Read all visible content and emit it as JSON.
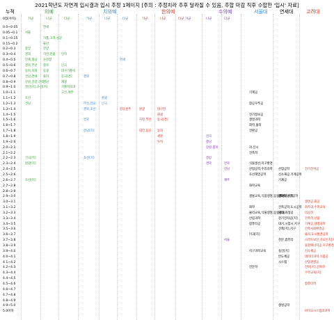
{
  "title": "2021학년도 자연계 입시결과 입시 추정 1페이지 [주의 : 추정치라 추후 달라질 수 있음, 추합 마감 직후 수합한 '입시' 자료]",
  "colors": {
    "green": "#2e9a2e",
    "blue": "#2f7fd0",
    "red": "#d42a1a",
    "purple": "#7a2ec8",
    "black": "#000000",
    "gray": "#8a8a8a"
  },
  "header": {
    "rank": "누적",
    "cols": [
      {
        "label": "의예",
        "color": "green"
      },
      {
        "label": "치의예",
        "color": "blue"
      },
      {
        "label": "한의예",
        "color": "red"
      },
      {
        "label": "수의예",
        "color": "purple"
      },
      {
        "label": "서울대",
        "color": "blue"
      },
      {
        "label": "연세대",
        "color": "black"
      },
      {
        "label": "고려대",
        "color": "red"
      }
    ],
    "sub_rank": "0점(수치)",
    "subs": [
      "가군",
      "나군",
      "다군",
      "가군",
      "나군",
      "다군",
      "가군",
      "나군",
      "다군",
      "가군",
      "나군",
      "다군"
    ]
  },
  "rows": [
    "0.0~0.05",
    "0.05~0.1",
    "0.1~0.15",
    "0.15~0.2",
    "0.2~0.3",
    "0.3~0.4",
    "0.4~0.5",
    "0.5~0.6",
    "0.6~0.7",
    "0.7~0.8",
    "0.8~0.9",
    "0.9~1.0",
    "1.0~1.1",
    "1.1~1.2",
    "1.2~1.3",
    "1.3~1.4",
    "1.4~1.5",
    "1.5~1.6",
    "1.6~1.7",
    "1.7~1.8",
    "1.8~1.9",
    "1.9~2.0",
    "2.0~2.1",
    "2.1~2.2",
    "2.2~2.3",
    "2.3~2.4",
    "2.4~2.5",
    "2.5~2.6",
    "2.6~2.7",
    "2.7~2.8",
    "2.8~2.9",
    "2.9~3.0",
    "3.0~3.1",
    "3.1~3.2",
    "3.2~3.3",
    "3.3~3.4",
    "3.4~3.5",
    "3.5~3.6",
    "3.6~3.7",
    "3.7~3.8",
    "3.8~3.9",
    "3.9~4.0",
    "4.0~4.1",
    "4.1~4.2",
    "4.2~4.3",
    "4.3~4.4",
    "4.4~4.5",
    "4.5~4.6",
    "4.6~4.7",
    "4.7~4.8",
    "4.8~4.9",
    "4.9~5.0",
    "5.0이하"
  ],
  "entries": [
    {
      "r": 0,
      "c": 2,
      "t": "연세",
      "k": "green"
    },
    {
      "r": 1,
      "c": 1,
      "t": "서울",
      "k": "green"
    },
    {
      "r": 2,
      "c": 2,
      "t": "가톨,고려,성균",
      "k": "green"
    },
    {
      "r": 3,
      "c": 2,
      "t": "울산",
      "k": "green"
    },
    {
      "r": 4,
      "c": 1,
      "t": "중앙",
      "k": "green"
    },
    {
      "r": 4,
      "c": 2,
      "t": "한양",
      "k": "green"
    },
    {
      "r": 5,
      "c": 1,
      "t": "경희",
      "k": "green"
    },
    {
      "r": 5,
      "c": 2,
      "t": "가천,한림",
      "k": "green"
    },
    {
      "r": 5,
      "c": 3,
      "t": "인하",
      "k": "green"
    },
    {
      "r": 6,
      "c": 1,
      "t": "인제,충남",
      "k": "green"
    },
    {
      "r": 6,
      "c": 2,
      "t": "순천향",
      "k": "green"
    },
    {
      "r": 6,
      "c": 6,
      "t": "연세",
      "k": "blue"
    },
    {
      "r": 7,
      "c": 1,
      "t": "경북,부산",
      "k": "green"
    },
    {
      "r": 7,
      "c": 2,
      "t": "충북",
      "k": "green"
    },
    {
      "r": 7,
      "c": 3,
      "t": "단국",
      "k": "green"
    },
    {
      "r": 8,
      "c": 1,
      "t": "동아,이화",
      "k": "green"
    },
    {
      "r": 8,
      "c": 2,
      "t": "동광",
      "k": "green"
    },
    {
      "r": 8,
      "c": 3,
      "t": "대구가톨릭",
      "k": "green"
    },
    {
      "r": 9,
      "c": 1,
      "t": "전남,연세",
      "k": "green"
    },
    {
      "r": 9,
      "c": 2,
      "t": "울지",
      "k": "green"
    },
    {
      "r": 9,
      "c": 3,
      "t": "동국[경]",
      "k": "green"
    },
    {
      "r": 9,
      "c": 4,
      "t": "경희",
      "k": "blue"
    },
    {
      "r": 10,
      "c": 1,
      "t": "강원,건양,전북",
      "k": "green"
    },
    {
      "r": 10,
      "c": 2,
      "t": "영남",
      "k": "green"
    },
    {
      "r": 10,
      "c": 3,
      "t": "계명",
      "k": "green"
    },
    {
      "r": 11,
      "c": 1,
      "t": "영산[지],조선[지]",
      "k": "green"
    },
    {
      "r": 11,
      "c": 3,
      "t": "가톨릭의과",
      "k": "green"
    },
    {
      "r": 12,
      "c": 3,
      "t": "고신,제주",
      "k": "green"
    },
    {
      "r": 12,
      "c": 12,
      "t": "기계공",
      "k": "black"
    },
    {
      "r": 13,
      "c": 1,
      "t": "조선",
      "k": "green"
    },
    {
      "r": 13,
      "c": 5,
      "t": "원광",
      "k": "blue"
    },
    {
      "r": 14,
      "c": 1,
      "t": "전남",
      "k": "green"
    },
    {
      "r": 14,
      "c": 4,
      "t": "부산,전남",
      "k": "blue"
    },
    {
      "r": 14,
      "c": 5,
      "t": "단국",
      "k": "blue"
    },
    {
      "r": 14,
      "c": 12,
      "t": "항공우주공",
      "k": "black"
    },
    {
      "r": 15,
      "c": 4,
      "t": "경북,조선",
      "k": "blue"
    },
    {
      "r": 15,
      "c": 6,
      "t": "강동원주",
      "k": "red"
    },
    {
      "r": 15,
      "c": 7,
      "t": "원광",
      "k": "red"
    },
    {
      "r": 15,
      "c": 8,
      "t": "대구한",
      "k": "red"
    },
    {
      "r": 16,
      "c": 8,
      "t": "원광",
      "k": "red"
    },
    {
      "r": 16,
      "c": 12,
      "t": "전기정보공",
      "k": "black"
    },
    {
      "r": 17,
      "c": 4,
      "t": "전북",
      "k": "blue"
    },
    {
      "r": 17,
      "c": 7,
      "t": "가천,부산",
      "k": "red"
    },
    {
      "r": 17,
      "c": 8,
      "t": "동국[경]",
      "k": "red"
    },
    {
      "r": 17,
      "c": 12,
      "t": "생명과학",
      "k": "black"
    },
    {
      "r": 18,
      "c": 12,
      "t": "화학,물리",
      "k": "black"
    },
    {
      "r": 19,
      "c": 4,
      "t": "전남[지]",
      "k": "blue"
    },
    {
      "r": 19,
      "c": 7,
      "t": "대전,동신",
      "k": "red"
    },
    {
      "r": 19,
      "c": 8,
      "t": "동의",
      "k": "red"
    },
    {
      "r": 19,
      "c": 12,
      "t": "건환공",
      "k": "black"
    },
    {
      "r": 20,
      "c": 8,
      "t": "세명",
      "k": "red"
    },
    {
      "r": 20,
      "c": 10,
      "t": "건국",
      "k": "purple"
    },
    {
      "r": 21,
      "c": 8,
      "t": "우석",
      "k": "red"
    },
    {
      "r": 21,
      "c": 10,
      "t": "충남",
      "k": "purple"
    },
    {
      "r": 22,
      "c": 10,
      "t": "강원,충북",
      "k": "purple"
    },
    {
      "r": 22,
      "c": 12,
      "t": "의.신시",
      "k": "black"
    },
    {
      "r": 23,
      "c": 12,
      "t": "건축학",
      "k": "black"
    },
    {
      "r": 24,
      "c": 1,
      "t": "건국[지]",
      "k": "green"
    },
    {
      "r": 24,
      "c": 4,
      "t": "조선[지]",
      "k": "blue"
    },
    {
      "r": 24,
      "c": 10,
      "t": "경상",
      "k": "purple"
    },
    {
      "r": 25,
      "c": 1,
      "t": "원광[지]",
      "k": "green"
    },
    {
      "r": 25,
      "c": 10,
      "t": "경북",
      "k": "purple"
    },
    {
      "r": 25,
      "c": 11,
      "t": "전북",
      "k": "purple"
    },
    {
      "r": 25,
      "c": 12,
      "t": "식물생산,지구환경",
      "k": "black"
    },
    {
      "r": 26,
      "c": 11,
      "t": "전남",
      "k": "purple"
    },
    {
      "r": 26,
      "c": 12,
      "t": "산업공학,수리과학",
      "k": "black"
    },
    {
      "r": 26,
      "c": 13,
      "t": "산업공학",
      "k": "black"
    },
    {
      "r": 26,
      "c": 14,
      "t": "전기전자공",
      "k": "red"
    },
    {
      "r": 27,
      "c": 12,
      "t": "조선해양공학",
      "k": "black"
    },
    {
      "r": 27,
      "c": 13,
      "t": "신소재공,기계공학",
      "k": "black"
    },
    {
      "r": 28,
      "c": 1,
      "t": "조선[지]",
      "k": "green"
    },
    {
      "r": 28,
      "c": 11,
      "t": "제주",
      "k": "purple"
    },
    {
      "r": 28,
      "c": 13,
      "t": "기계공",
      "k": "black"
    },
    {
      "r": 29,
      "c": 12,
      "t": "화학교육",
      "k": "black"
    },
    {
      "r": 31,
      "c": 13,
      "t": "글로벌융합공학",
      "k": "black"
    },
    {
      "r": 31,
      "c": 12,
      "t": "생물교육,식품생명,응용생명",
      "k": "black"
    },
    {
      "r": 31,
      "c": 13,
      "t": "생화학,수학",
      "k": "black"
    },
    {
      "r": 32,
      "c": 14,
      "t": "생명공,화공",
      "k": "red"
    },
    {
      "r": 33,
      "c": 12,
      "t": "화학",
      "k": "black"
    },
    {
      "r": 33,
      "c": 13,
      "t": "건축공학,도시공학",
      "k": "black"
    },
    {
      "r": 33,
      "c": 14,
      "t": "화학과,수학교육",
      "k": "red"
    },
    {
      "r": 34,
      "c": 12,
      "t": "물리교육,식물생명,응용생물",
      "k": "black"
    },
    {
      "r": 34,
      "c": 13,
      "t": "물리,화생공",
      "k": "black"
    },
    {
      "r": 34,
      "c": 14,
      "t": "의공학",
      "k": "red"
    },
    {
      "r": 35,
      "c": 12,
      "t": "산림과학",
      "k": "black"
    },
    {
      "r": 35,
      "c": 13,
      "t": "전기전자공[지]",
      "k": "black"
    },
    {
      "r": 35,
      "c": 14,
      "t": "건축학,산림",
      "k": "red"
    },
    {
      "r": 36,
      "c": 12,
      "t": "컴퓨터공",
      "k": "black"
    },
    {
      "r": 36,
      "c": 13,
      "t": "대기,시험시,지구",
      "k": "black"
    },
    {
      "r": 36,
      "c": 14,
      "t": "기계공,생명과학",
      "k": "red"
    },
    {
      "r": 37,
      "c": 13,
      "t": "건축[지],지구",
      "k": "black"
    },
    {
      "r": 37,
      "c": 14,
      "t": "건축사회환경공",
      "k": "red"
    },
    {
      "r": 38,
      "c": 12,
      "t": "미괴[지]",
      "k": "black"
    },
    {
      "r": 38,
      "c": 14,
      "t": "물리,도시환경공학",
      "k": "red"
    },
    {
      "r": 39,
      "c": 11,
      "t": "서울",
      "k": "purple"
    },
    {
      "r": 39,
      "c": 13,
      "t": "천문,컴퓨터",
      "k": "black"
    },
    {
      "r": 39,
      "c": 14,
      "t": "스마트보안,지오인지[지]",
      "k": "red"
    },
    {
      "r": 40,
      "c": 14,
      "t": "융합에너지공,지구환경과학",
      "k": "red"
    },
    {
      "r": 41,
      "c": 12,
      "t": "지구과학교육",
      "k": "black"
    },
    {
      "r": 41,
      "c": 13,
      "t": "실건[지]",
      "k": "black"
    },
    {
      "r": 41,
      "c": 14,
      "t": "신소재공",
      "k": "red"
    },
    {
      "r": 42,
      "c": 13,
      "t": "반도체공",
      "k": "black"
    },
    {
      "r": 42,
      "c": 14,
      "t": "데이터과학,식품공",
      "k": "red"
    },
    {
      "r": 43,
      "c": 13,
      "t": "시스템",
      "k": "black"
    },
    {
      "r": 43,
      "c": 14,
      "t": "산업경영공",
      "k": "red"
    },
    {
      "r": 44,
      "c": 12,
      "t": "전문학",
      "k": "black"
    },
    {
      "r": 44,
      "c": 14,
      "t": "전파[지],건축학",
      "k": "red"
    },
    {
      "r": 45,
      "c": 14,
      "t": "수학교육[지]",
      "k": "red"
    },
    {
      "r": 47,
      "c": 14,
      "t": "컴퓨터학",
      "k": "red"
    },
    {
      "r": 51,
      "c": 13,
      "t": "생명공학",
      "k": "black"
    },
    {
      "r": 52,
      "c": 14,
      "t": "바이오시스템의과학",
      "k": "red"
    }
  ]
}
